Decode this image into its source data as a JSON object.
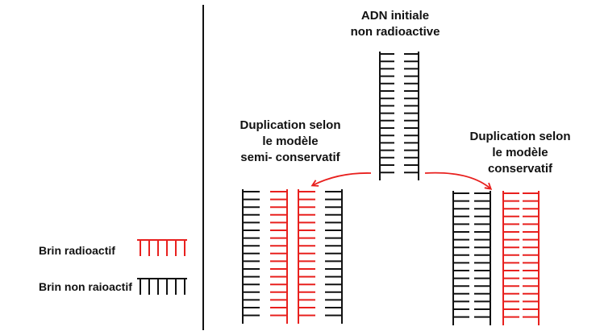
{
  "colors": {
    "radioactive": "#e8201e",
    "non_radioactive": "#111111",
    "arrow": "#e8201e"
  },
  "labels": {
    "initial": [
      "ADN initiale",
      "non radioactive"
    ],
    "semi": [
      "Duplication selon",
      "le modèle",
      "semi- conservatif"
    ],
    "conservative": [
      "Duplication selon",
      "le modèle",
      "conservatif"
    ]
  },
  "legend": {
    "radioactive": "Brin radioactif",
    "non_radioactive": "Brin non raioactif"
  },
  "molecules": {
    "initial": {
      "strands": [
        "non_radioactive",
        "non_radioactive"
      ]
    },
    "semi_conservative": [
      {
        "strands": [
          "non_radioactive",
          "radioactive"
        ]
      },
      {
        "strands": [
          "radioactive",
          "non_radioactive"
        ]
      }
    ],
    "conservative": [
      {
        "strands": [
          "non_radioactive",
          "non_radioactive"
        ]
      },
      {
        "strands": [
          "radioactive",
          "radioactive"
        ]
      }
    ]
  }
}
